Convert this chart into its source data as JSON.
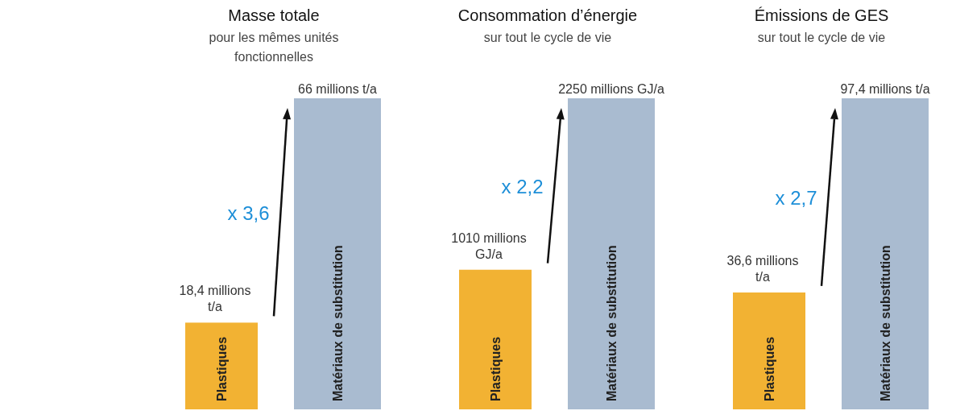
{
  "chart_data": [
    {
      "type": "bar",
      "title": "Masse totale",
      "subtitle": "pour les mêmes unités fonctionnelles",
      "categories": [
        "Plastiques",
        "Matériaux de substitution"
      ],
      "values": [
        18.4,
        66
      ],
      "colors": [
        "#f2b233",
        "#a9bbd0"
      ],
      "value_labels": [
        "18,4 millions t/a",
        "66 millions t/a"
      ],
      "annotations": [
        "x 3,6"
      ]
    },
    {
      "type": "bar",
      "title": "Consommation d’énergie",
      "subtitle": "sur tout le cycle de vie",
      "categories": [
        "Plastiques",
        "Matériaux de substitution"
      ],
      "values": [
        1010,
        2250
      ],
      "colors": [
        "#f2b233",
        "#a9bbd0"
      ],
      "value_labels": [
        "1010 millions GJ/a",
        "2250 millions GJ/a"
      ],
      "annotations": [
        "x 2,2"
      ]
    },
    {
      "type": "bar",
      "title": "Émissions de GES",
      "subtitle": "sur tout le cycle de vie",
      "categories": [
        "Plastiques",
        "Matériaux de substitution"
      ],
      "values": [
        36.6,
        97.4
      ],
      "colors": [
        "#f2b233",
        "#a9bbd0"
      ],
      "value_labels": [
        "36,6 millions t/a",
        "97,4 millions t/a"
      ],
      "annotations": [
        "x 2,7"
      ]
    }
  ]
}
